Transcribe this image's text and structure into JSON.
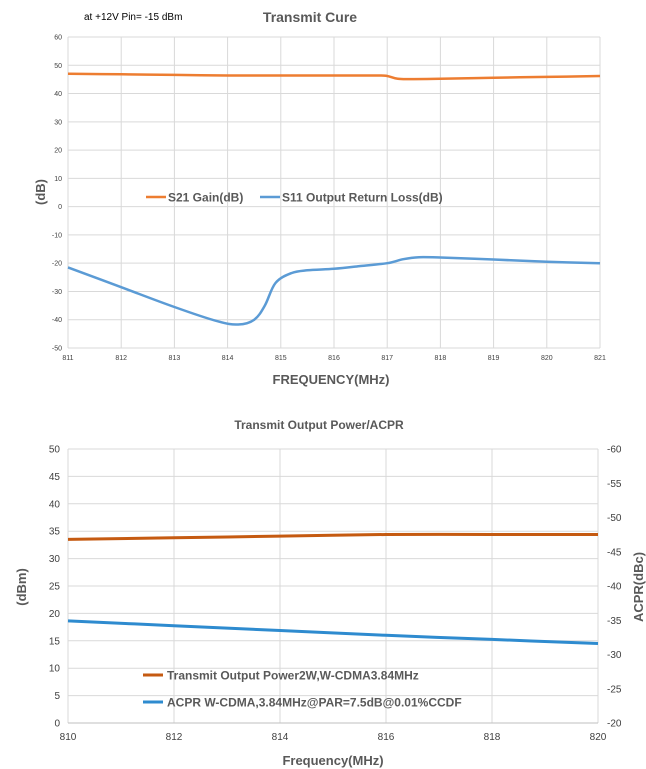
{
  "chart_data": [
    {
      "type": "line",
      "title": "Transmit Cure",
      "subtitle": "at +12V Pin= -15 dBm",
      "xlabel": "FREQUENCY(MHz)",
      "ylabel": "(dB)",
      "xlim": [
        811,
        821
      ],
      "ylim": [
        -50,
        60
      ],
      "x_ticks": [
        "811",
        "812",
        "813",
        "814",
        "815",
        "816",
        "817",
        "818",
        "819",
        "820",
        "821"
      ],
      "y_ticks": [
        "-50",
        "-40",
        "-30",
        "-20",
        "-10",
        "0",
        "10",
        "20",
        "30",
        "40",
        "50",
        "60"
      ],
      "grid": true,
      "legend_position": "center",
      "series": [
        {
          "name": "S21 Gain(dB)",
          "color": "#ED7D31",
          "x": [
            811,
            812,
            813,
            814,
            815,
            816,
            816.8,
            817,
            817.2,
            817.5,
            818,
            819,
            820,
            821
          ],
          "y": [
            47,
            46.8,
            46.6,
            46.4,
            46.4,
            46.4,
            46.4,
            46.2,
            45.2,
            45.1,
            45.2,
            45.6,
            45.9,
            46.2
          ]
        },
        {
          "name": "S11 Output Return Loss(dB)",
          "color": "#5B9BD5",
          "x": [
            811,
            812,
            813,
            813.8,
            814.2,
            814.5,
            814.7,
            814.9,
            815.2,
            815.5,
            816,
            816.5,
            817,
            817.3,
            817.6,
            818,
            819,
            820,
            821
          ],
          "y": [
            -21.5,
            -28.5,
            -35.5,
            -40.5,
            -41.7,
            -40,
            -35,
            -27,
            -23.5,
            -22.5,
            -22,
            -21,
            -20,
            -18.6,
            -17.9,
            -18,
            -18.7,
            -19.5,
            -20
          ]
        }
      ]
    },
    {
      "type": "line",
      "title": "Transmit Output Power/ACPR",
      "xlabel": "Frequency(MHz)",
      "ylabel": "(dBm)",
      "y2label": "ACPR(dBc)",
      "xlim": [
        810,
        820
      ],
      "ylim": [
        0,
        50
      ],
      "y2lim": [
        -20,
        -60
      ],
      "x_ticks": [
        "810",
        "812",
        "814",
        "816",
        "818",
        "820"
      ],
      "y_ticks": [
        "0",
        "5",
        "10",
        "15",
        "20",
        "25",
        "30",
        "35",
        "40",
        "45",
        "50"
      ],
      "y2_ticks": [
        "-20",
        "-25",
        "-30",
        "-35",
        "-40",
        "-45",
        "-50",
        "-55",
        "-60"
      ],
      "grid": true,
      "legend_position": "bottom-left",
      "series": [
        {
          "name": "Transmit Output Power2W,W-CDMA3.84MHz",
          "color": "#C55A11",
          "axis": "left",
          "x": [
            810,
            812,
            814,
            816,
            818,
            820
          ],
          "y": [
            33.5,
            33.8,
            34.1,
            34.4,
            34.4,
            34.4
          ]
        },
        {
          "name": "ACPR W-CDMA,3.84MHz@PAR=7.5dB@0.01%CCDF",
          "color": "#2E8BCF",
          "axis": "right",
          "x": [
            810,
            812,
            814,
            816,
            818,
            820
          ],
          "y": [
            -34.9,
            -34.2,
            -33.5,
            -32.8,
            -32.2,
            -31.6
          ]
        }
      ]
    }
  ]
}
